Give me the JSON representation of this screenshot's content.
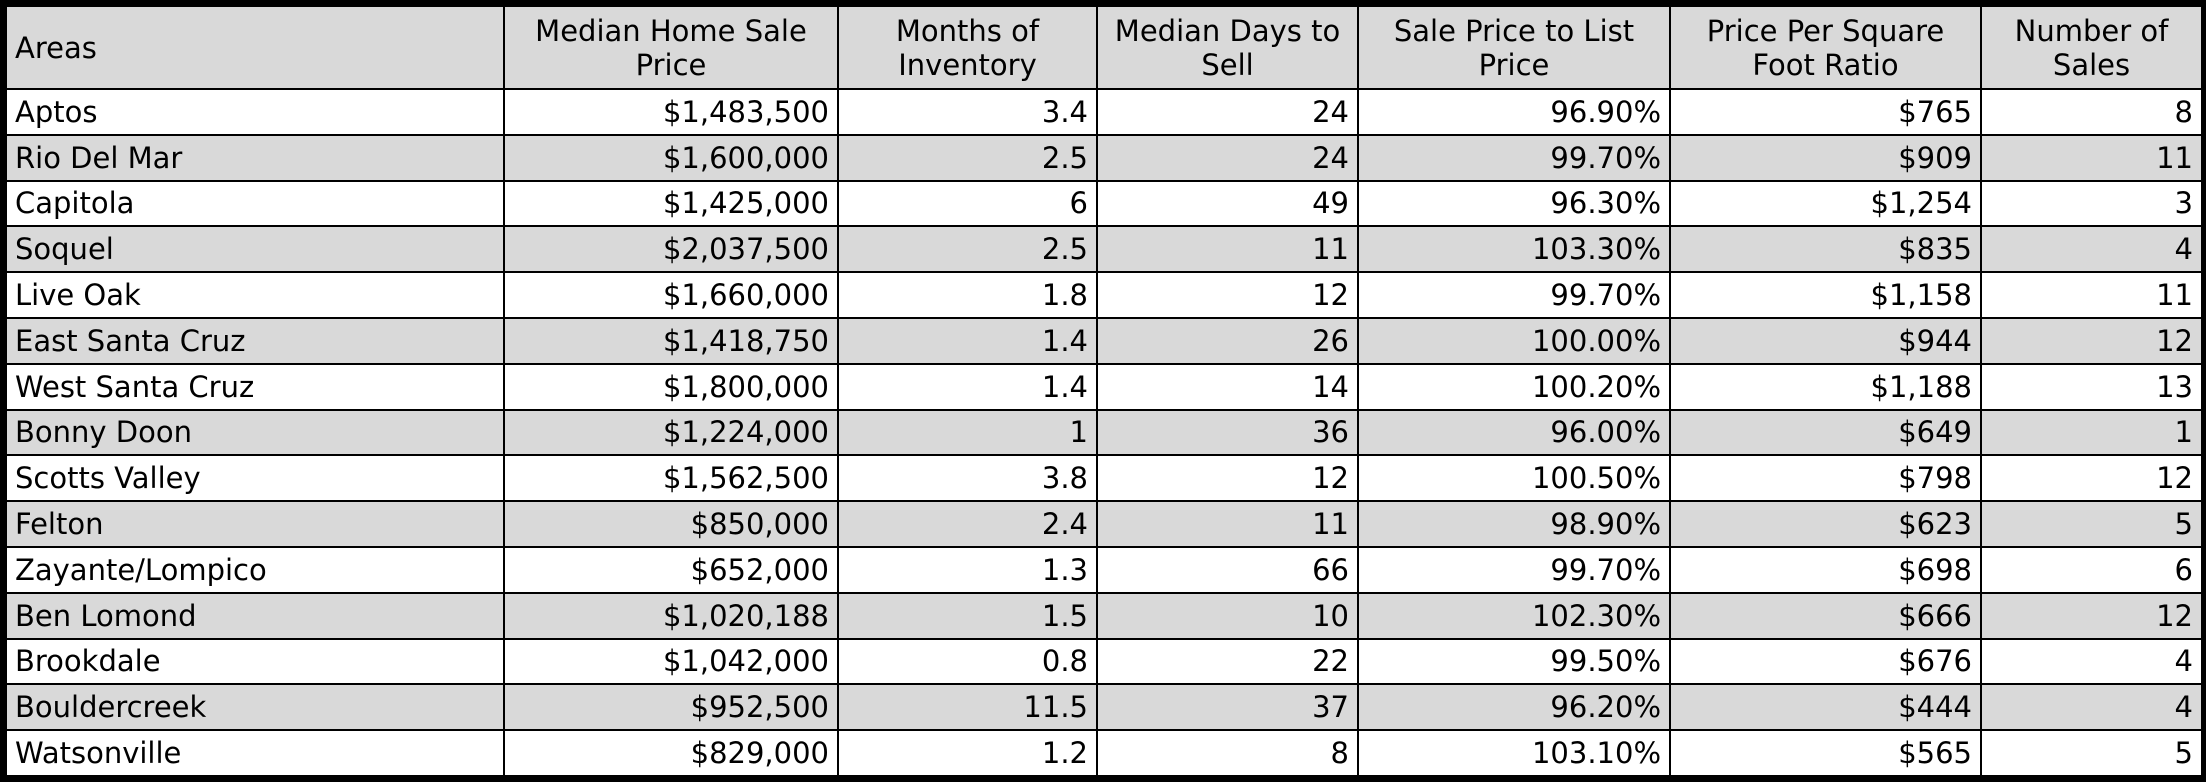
{
  "table": {
    "headers": [
      "Areas",
      "Median Home Sale Price",
      "Months of Inventory",
      "Median Days to Sell",
      "Sale Price to List Price",
      "Price Per Square Foot Ratio",
      "Number of Sales"
    ],
    "rows": [
      [
        "Aptos",
        "$1,483,500",
        "3.4",
        "24",
        "96.90%",
        "$765",
        "8"
      ],
      [
        "Rio Del Mar",
        "$1,600,000",
        "2.5",
        "24",
        "99.70%",
        "$909",
        "11"
      ],
      [
        "Capitola",
        "$1,425,000",
        "6",
        "49",
        "96.30%",
        "$1,254",
        "3"
      ],
      [
        "Soquel",
        "$2,037,500",
        "2.5",
        "11",
        "103.30%",
        "$835",
        "4"
      ],
      [
        "Live Oak",
        "$1,660,000",
        "1.8",
        "12",
        "99.70%",
        "$1,158",
        "11"
      ],
      [
        "East Santa Cruz",
        "$1,418,750",
        "1.4",
        "26",
        "100.00%",
        "$944",
        "12"
      ],
      [
        "West Santa Cruz",
        "$1,800,000",
        "1.4",
        "14",
        "100.20%",
        "$1,188",
        "13"
      ],
      [
        "Bonny Doon",
        "$1,224,000",
        "1",
        "36",
        "96.00%",
        "$649",
        "1"
      ],
      [
        "Scotts Valley",
        "$1,562,500",
        "3.8",
        "12",
        "100.50%",
        "$798",
        "12"
      ],
      [
        "Felton",
        "$850,000",
        "2.4",
        "11",
        "98.90%",
        "$623",
        "5"
      ],
      [
        "Zayante/Lompico",
        "$652,000",
        "1.3",
        "66",
        "99.70%",
        "$698",
        "6"
      ],
      [
        "Ben Lomond",
        "$1,020,188",
        "1.5",
        "10",
        "102.30%",
        "$666",
        "12"
      ],
      [
        "Brookdale",
        "$1,042,000",
        "0.8",
        "22",
        "99.50%",
        "$676",
        "4"
      ],
      [
        "Bouldercreek",
        "$952,500",
        "11.5",
        "37",
        "96.20%",
        "$444",
        "4"
      ],
      [
        "Watsonville",
        "$829,000",
        "1.2",
        "8",
        "103.10%",
        "$565",
        "5"
      ]
    ]
  },
  "colors": {
    "header_bg": "#d9d9d9",
    "stripe_bg": "#d9d9d9",
    "row_bg": "#ffffff",
    "border": "#000000",
    "text": "#000000"
  }
}
